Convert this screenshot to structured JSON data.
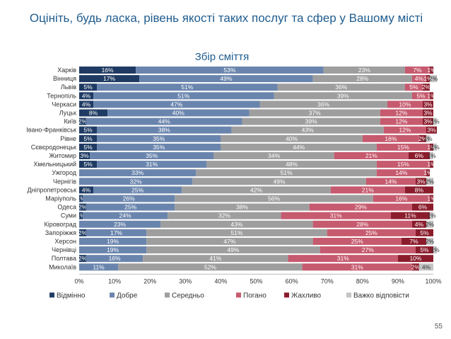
{
  "page": {
    "title": "Оцініть, будь ласка, рівень якості таких послуг та сфер у Вашому місті",
    "page_number": "55"
  },
  "chart_data": {
    "type": "bar",
    "orientation": "horizontal",
    "stacked": true,
    "title": "Збір сміття",
    "xlim": [
      0,
      100
    ],
    "xticks": [
      "0%",
      "10%",
      "20%",
      "30%",
      "40%",
      "50%",
      "60%",
      "70%",
      "80%",
      "90%",
      "100%"
    ],
    "grid": false,
    "legend_position": "bottom",
    "categories": [
      "Харків",
      "Вінниця",
      "Львів",
      "Тернопіль",
      "Черкаси",
      "Луцьк",
      "Київ",
      "Івано-Франківськ",
      "Рівне",
      "Сєвєродонецьк",
      "Житомир",
      "Хмельницький",
      "Ужгород",
      "Чернігів",
      "Дніпропетровськ",
      "Маріуполь",
      "Одеса",
      "Суми",
      "Кіровоград",
      "Запоріжжя",
      "Херсон",
      "Чернівці",
      "Полтава",
      "Миколаїв"
    ],
    "series": [
      {
        "name": "Відмінно",
        "color": "#1f3b63",
        "values": [
          16,
          17,
          5,
          4,
          4,
          8,
          2,
          5,
          5,
          5,
          3,
          5,
          0,
          0,
          4,
          1,
          2,
          1,
          0,
          2,
          0,
          0,
          2,
          0
        ]
      },
      {
        "name": "Добре",
        "color": "#6a85ad",
        "values": [
          53,
          49,
          51,
          51,
          47,
          40,
          44,
          38,
          35,
          35,
          35,
          31,
          33,
          32,
          25,
          26,
          25,
          24,
          23,
          17,
          19,
          19,
          16,
          11
        ]
      },
      {
        "name": "Середньо",
        "color": "#9e9e9e",
        "values": [
          23,
          28,
          36,
          39,
          36,
          37,
          39,
          43,
          40,
          44,
          34,
          48,
          51,
          49,
          42,
          56,
          38,
          32,
          43,
          51,
          47,
          49,
          41,
          52
        ]
      },
      {
        "name": "Погано",
        "color": "#c65a6e",
        "values": [
          7,
          4,
          5,
          5,
          10,
          12,
          12,
          12,
          16,
          15,
          21,
          15,
          14,
          14,
          21,
          16,
          29,
          31,
          28,
          25,
          25,
          27,
          31,
          31
        ]
      },
      {
        "name": "Жахливо",
        "color": "#8b1c2c",
        "values": [
          1,
          1,
          2,
          1,
          3,
          3,
          3,
          3,
          2,
          1,
          6,
          1,
          1,
          3,
          8,
          1,
          6,
          11,
          4,
          5,
          7,
          5,
          10,
          2
        ]
      },
      {
        "name": "Важко відповісти",
        "color": "#c4c4c4",
        "values": [
          0,
          2,
          0,
          0,
          0,
          0,
          1,
          0,
          1,
          1,
          1,
          0,
          0,
          2,
          0,
          0,
          0,
          1,
          2,
          0,
          2,
          1,
          0,
          4
        ]
      }
    ]
  }
}
